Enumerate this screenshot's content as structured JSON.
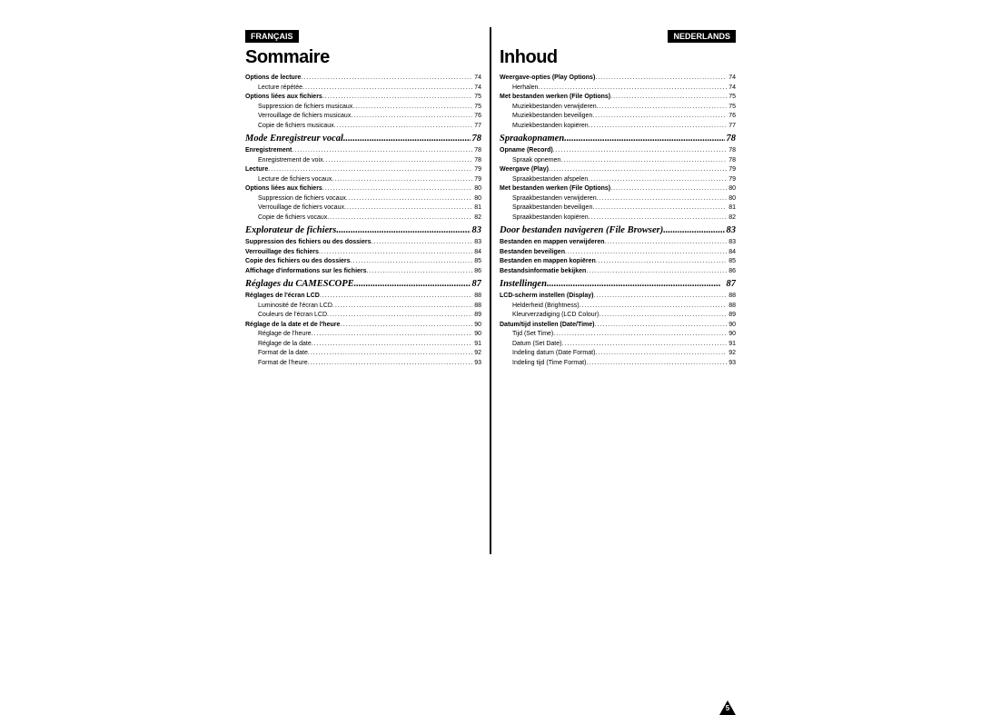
{
  "left": {
    "lang": "FRANÇAIS",
    "title": "Sommaire",
    "groups": [
      {
        "type": "entries",
        "items": [
          {
            "lvl": 0,
            "label": "Options de lecture",
            "pg": "74"
          },
          {
            "lvl": 1,
            "label": "Lecture répétée",
            "pg": "74"
          },
          {
            "lvl": 0,
            "label": "Options liées aux fichiers",
            "pg": "75"
          },
          {
            "lvl": 1,
            "label": "Suppression de fichiers musicaux",
            "pg": "75"
          },
          {
            "lvl": 1,
            "label": "Verrouillage de fichiers musicaux",
            "pg": "76"
          },
          {
            "lvl": 1,
            "label": "Copie de fichiers musicaux",
            "pg": "77"
          }
        ]
      },
      {
        "type": "section",
        "label": "Mode Enregistreur vocal",
        "pg": "78"
      },
      {
        "type": "entries",
        "items": [
          {
            "lvl": 0,
            "label": "Enregistrement",
            "pg": "78"
          },
          {
            "lvl": 1,
            "label": "Enregistrement de voix",
            "pg": "78"
          },
          {
            "lvl": 0,
            "label": "Lecture",
            "pg": "79"
          },
          {
            "lvl": 1,
            "label": "Lecture de fichiers vocaux",
            "pg": "79"
          },
          {
            "lvl": 0,
            "label": "Options liées aux fichiers",
            "pg": "80"
          },
          {
            "lvl": 1,
            "label": "Suppression de fichiers vocaux",
            "pg": "80"
          },
          {
            "lvl": 1,
            "label": "Verrouillage de fichiers vocaux",
            "pg": "81"
          },
          {
            "lvl": 1,
            "label": "Copie de fichiers vocaux",
            "pg": "82"
          }
        ]
      },
      {
        "type": "section",
        "label": "Explorateur de fichiers",
        "pg": "83"
      },
      {
        "type": "entries",
        "items": [
          {
            "lvl": 0,
            "label": "Suppression des fichiers ou des dossiers",
            "pg": "83"
          },
          {
            "lvl": 0,
            "label": "Verrouillage des fichiers",
            "pg": "84"
          },
          {
            "lvl": 0,
            "label": "Copie des fichiers ou des dossiers",
            "pg": "85"
          },
          {
            "lvl": 0,
            "label": "Affichage d'informations sur les fichiers",
            "pg": "86"
          }
        ]
      },
      {
        "type": "section",
        "label": "Réglages du CAMESCOPE",
        "pg": "87"
      },
      {
        "type": "entries",
        "items": [
          {
            "lvl": 0,
            "label": "Réglages de l'écran LCD",
            "pg": "88"
          },
          {
            "lvl": 1,
            "label": "Luminosité de l'écran LCD",
            "pg": "88"
          },
          {
            "lvl": 1,
            "label": "Couleurs de l'écran LCD",
            "pg": "89"
          },
          {
            "lvl": 0,
            "label": "Réglage de la date et de l'heure",
            "pg": "90"
          },
          {
            "lvl": 1,
            "label": "Réglage de l'heure",
            "pg": "90"
          },
          {
            "lvl": 1,
            "label": "Réglage de la date",
            "pg": "91"
          },
          {
            "lvl": 1,
            "label": "Format de la date",
            "pg": "92"
          },
          {
            "lvl": 1,
            "label": "Format de l'heure",
            "pg": "93"
          }
        ]
      }
    ]
  },
  "right": {
    "lang": "NEDERLANDS",
    "title": "Inhoud",
    "pagenum": "5",
    "groups": [
      {
        "type": "entries",
        "items": [
          {
            "lvl": 0,
            "label": "Weergave-opties (Play Options)",
            "pg": "74"
          },
          {
            "lvl": 1,
            "label": "Herhalen",
            "pg": "74"
          },
          {
            "lvl": 0,
            "label": "Met bestanden werken (File Options)",
            "pg": "75"
          },
          {
            "lvl": 1,
            "label": "Muziekbestanden verwijderen",
            "pg": "75"
          },
          {
            "lvl": 1,
            "label": "Muziekbestanden beveiligen",
            "pg": "76"
          },
          {
            "lvl": 1,
            "label": "Muziekbestanden kopiëren",
            "pg": "77"
          }
        ]
      },
      {
        "type": "section",
        "label": "Spraakopnamen",
        "pg": "78"
      },
      {
        "type": "entries",
        "items": [
          {
            "lvl": 0,
            "label": "Opname (Record)",
            "pg": "78"
          },
          {
            "lvl": 1,
            "label": "Spraak opnemen",
            "pg": "78"
          },
          {
            "lvl": 0,
            "label": "Weergave (Play)",
            "pg": "79"
          },
          {
            "lvl": 1,
            "label": "Spraakbestanden afspelen",
            "pg": "79"
          },
          {
            "lvl": 0,
            "label": "Met bestanden werken (File Options)",
            "pg": "80"
          },
          {
            "lvl": 1,
            "label": "Spraakbestanden verwijderen",
            "pg": "80"
          },
          {
            "lvl": 1,
            "label": "Spraakbestanden beveiligen",
            "pg": "81"
          },
          {
            "lvl": 1,
            "label": "Spraakbestanden kopiëren",
            "pg": "82"
          }
        ]
      },
      {
        "type": "section",
        "label": "Door bestanden navigeren (File Browser)",
        "pg": "83"
      },
      {
        "type": "entries",
        "items": [
          {
            "lvl": 0,
            "label": "Bestanden en mappen verwijderen",
            "pg": "83"
          },
          {
            "lvl": 0,
            "label": "Bestanden beveiligen",
            "pg": "84"
          },
          {
            "lvl": 0,
            "label": "Bestanden en mappen kopiëren",
            "pg": "85"
          },
          {
            "lvl": 0,
            "label": "Bestandsinformatie bekijken",
            "pg": "86"
          }
        ]
      },
      {
        "type": "section",
        "label": "Instellingen",
        "pg": "87"
      },
      {
        "type": "entries",
        "items": [
          {
            "lvl": 0,
            "label": "LCD-scherm instellen (Display)",
            "pg": "88"
          },
          {
            "lvl": 1,
            "label": "Helderheid (Brightness)",
            "pg": "88"
          },
          {
            "lvl": 1,
            "label": "Kleurverzadiging (LCD Colour)",
            "pg": "89"
          },
          {
            "lvl": 0,
            "label": "Datum/tijd instellen (Date/Time)",
            "pg": "90"
          },
          {
            "lvl": 1,
            "label": "Tijd (Set Time)",
            "pg": "90"
          },
          {
            "lvl": 1,
            "label": "Datum (Set Date)",
            "pg": "91"
          },
          {
            "lvl": 1,
            "label": "Indeling datum (Date Format)",
            "pg": "92"
          },
          {
            "lvl": 1,
            "label": "Indeling tijd (Time Format)",
            "pg": "93"
          }
        ]
      }
    ]
  }
}
